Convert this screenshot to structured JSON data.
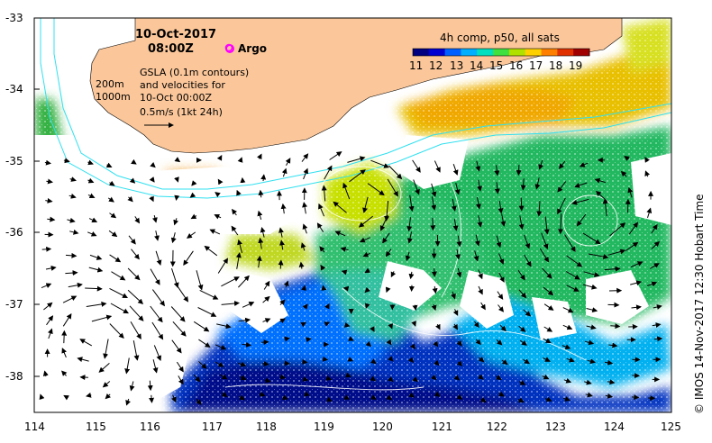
{
  "header": {
    "date": "10-Oct-2017",
    "time": "08:00Z",
    "argo_label": "Argo"
  },
  "colorbar": {
    "title": "4h comp, p50, all sats",
    "ticks": [
      "11",
      "12",
      "13",
      "14",
      "15",
      "16",
      "17",
      "18",
      "19"
    ],
    "colors": [
      "#000080",
      "#0000d0",
      "#0060ff",
      "#00b0ff",
      "#00e0c0",
      "#40e040",
      "#b0e000",
      "#ffd000",
      "#ff8000",
      "#e03000",
      "#a00000"
    ]
  },
  "legend": {
    "depth_200": "200m",
    "depth_1000": "1000m",
    "gsla_line1": "GSLA (0.1m contours)",
    "gsla_line2": "and velocities for",
    "gsla_line3": "10-Oct 00:00Z",
    "velocity_scale": "0.5m/s (1kt 24h)"
  },
  "axes": {
    "x_ticks": [
      "114",
      "115",
      "116",
      "117",
      "118",
      "119",
      "120",
      "121",
      "122",
      "123",
      "124",
      "125"
    ],
    "y_ticks": [
      "-33",
      "-34",
      "-35",
      "-36",
      "-37",
      "-38"
    ]
  },
  "credit": "© IMOS 14-Nov-2017 12:30 Hobart Time",
  "palette": {
    "land": "#fbc79a",
    "argo": "#ff00ff",
    "depth_contour": "#30e0f0"
  }
}
